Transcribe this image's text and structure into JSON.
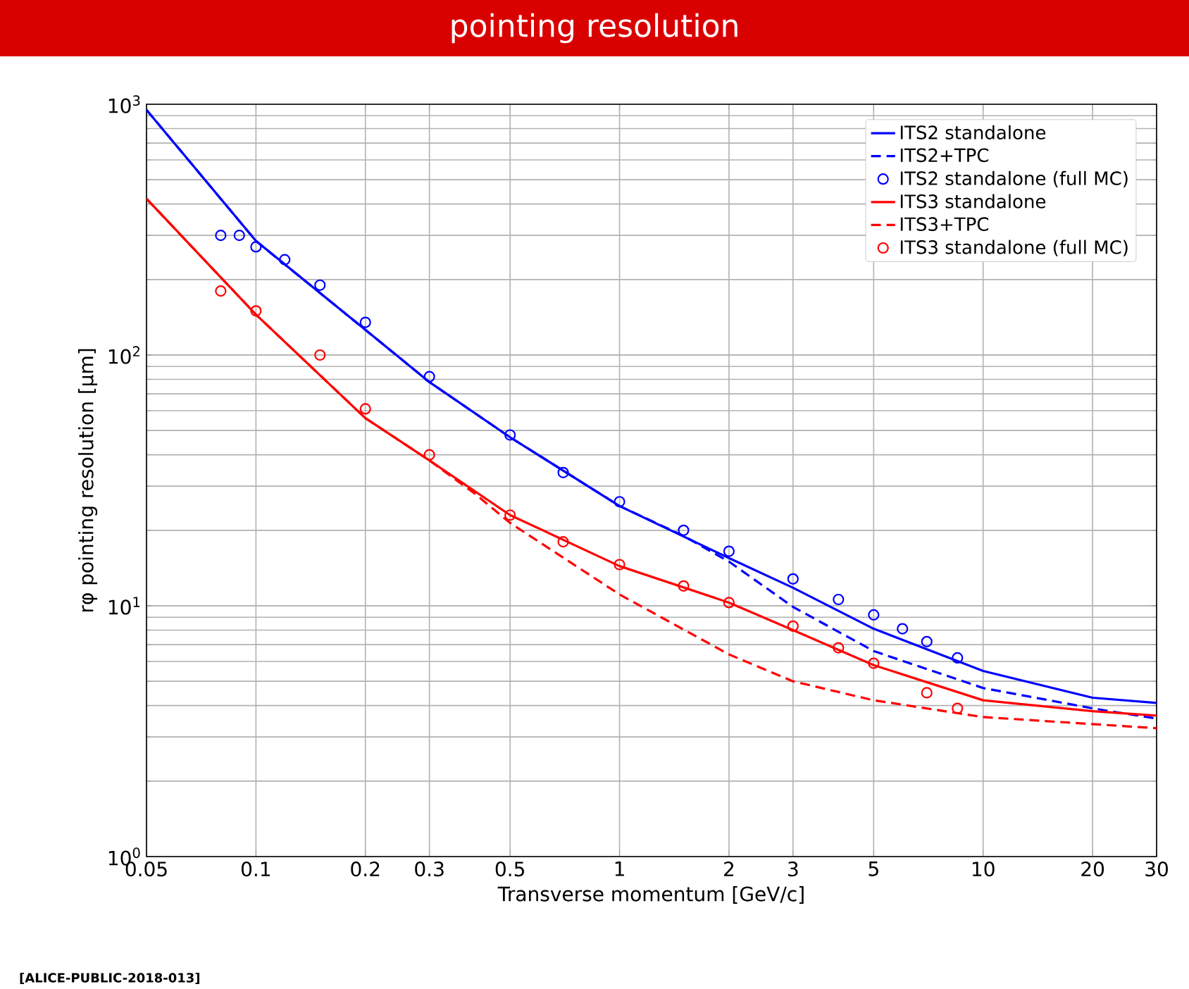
{
  "chart_data": {
    "type": "line",
    "title": "pointing resolution",
    "xlabel": "Transverse momentum [GeV/c]",
    "ylabel": "rφ pointing resolution [μm]",
    "log": "xy",
    "grid": true,
    "legend": "top right",
    "marker": "none",
    "xlim": [
      0.05,
      30
    ],
    "ylim": [
      1,
      1000
    ],
    "xticks": [
      0.05,
      0.1,
      0.2,
      0.3,
      0.5,
      1,
      2,
      3,
      5,
      10,
      20,
      30
    ],
    "yticks": [
      {
        "value": 1,
        "label": "10$^{0}$"
      },
      {
        "value": 10,
        "label": "10$^{1}$"
      },
      {
        "value": 100,
        "label": "10$^{2}$"
      },
      {
        "value": 1000,
        "label": "10$^{3}$"
      }
    ],
    "annotations": [
      "[ALICE-PUBLIC-2018-013]"
    ],
    "series": [
      {
        "name": "ITS2 standalone",
        "color": "#0000ff",
        "line_style": "solid",
        "x": [
          0.05,
          0.1,
          0.2,
          0.3,
          0.5,
          1,
          2,
          3,
          5,
          10,
          20,
          30
        ],
        "values": [
          950,
          285,
          126,
          78,
          47,
          25,
          15.5,
          11.8,
          8.1,
          5.5,
          4.3,
          4.1
        ]
      },
      {
        "name": "ITS2+TPC",
        "color": "#0000ff",
        "line_style": "dashed",
        "x": [
          0.05,
          0.1,
          0.2,
          0.3,
          0.5,
          1,
          1.5,
          2,
          3,
          5,
          10,
          20,
          30
        ],
        "values": [
          950,
          285,
          126,
          78,
          47,
          25,
          19,
          15,
          9.9,
          6.6,
          4.7,
          3.9,
          3.55
        ]
      },
      {
        "name": "ITS2 standalone (full MC)",
        "color": "#0000ff",
        "type": "scatter",
        "marker": "circle",
        "x": [
          0.08,
          0.09,
          0.1,
          0.12,
          0.15,
          0.2,
          0.3,
          0.5,
          0.7,
          1,
          1.5,
          2,
          3,
          4,
          5,
          6,
          7,
          8.5
        ],
        "values": [
          300,
          300,
          270,
          240,
          190,
          135,
          82,
          48,
          34,
          26,
          20,
          16.5,
          12.8,
          10.6,
          9.2,
          8.1,
          7.2,
          6.2
        ]
      },
      {
        "name": "ITS3 standalone",
        "color": "#ff0000",
        "line_style": "solid",
        "x": [
          0.05,
          0.1,
          0.2,
          0.3,
          0.5,
          1,
          2,
          3,
          5,
          10,
          20,
          30
        ],
        "values": [
          420,
          145,
          56,
          38,
          23,
          14.4,
          10.3,
          8,
          5.8,
          4.2,
          3.8,
          3.65
        ]
      },
      {
        "name": "ITS3+TPC",
        "color": "#ff0000",
        "line_style": "dashed",
        "x": [
          0.05,
          0.1,
          0.2,
          0.3,
          0.4,
          0.5,
          1,
          2,
          3,
          5,
          10,
          30
        ],
        "values": [
          420,
          145,
          56,
          38,
          28,
          21.4,
          11.1,
          6.4,
          5,
          4.2,
          3.6,
          3.25
        ]
      },
      {
        "name": "ITS3 standalone (full MC)",
        "color": "#ff0000",
        "type": "scatter",
        "marker": "circle",
        "x": [
          0.08,
          0.1,
          0.15,
          0.2,
          0.3,
          0.5,
          0.7,
          1,
          1.5,
          2,
          3,
          4,
          5,
          7,
          8.5
        ],
        "values": [
          180,
          150,
          100,
          61,
          40,
          23,
          18,
          14.6,
          12,
          10.3,
          8.3,
          6.8,
          5.9,
          4.5,
          3.9
        ]
      }
    ]
  }
}
